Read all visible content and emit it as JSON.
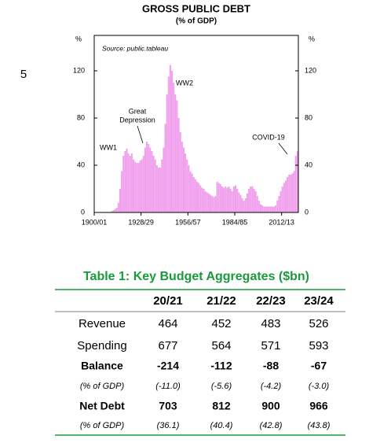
{
  "page_number": "5",
  "chart_data": {
    "type": "bar",
    "title": "GROSS PUBLIC DEBT",
    "subtitle": "(% of GDP)",
    "y_unit_left": "%",
    "y_unit_right": "%",
    "source": "Source: public.tableau",
    "annotations": {
      "ww1": "WW1",
      "great_depression": [
        "Great",
        "Depression"
      ],
      "ww2": "WW2",
      "covid": "COVID-19"
    },
    "color": "#f0a0ec",
    "xlim": [
      1900,
      2022
    ],
    "xticks": [
      {
        "value": 1900,
        "label": "1900/01"
      },
      {
        "value": 1928,
        "label": "1928/29"
      },
      {
        "value": 1956,
        "label": "1956/57"
      },
      {
        "value": 1984,
        "label": "1984/85"
      },
      {
        "value": 2012,
        "label": "2012/13"
      }
    ],
    "ylim": [
      0,
      150
    ],
    "yticks": [
      0,
      40,
      80,
      120
    ],
    "x": [
      1900,
      1901,
      1902,
      1903,
      1904,
      1905,
      1906,
      1907,
      1908,
      1909,
      1910,
      1911,
      1912,
      1913,
      1914,
      1915,
      1916,
      1917,
      1918,
      1919,
      1920,
      1921,
      1922,
      1923,
      1924,
      1925,
      1926,
      1927,
      1928,
      1929,
      1930,
      1931,
      1932,
      1933,
      1934,
      1935,
      1936,
      1937,
      1938,
      1939,
      1940,
      1941,
      1942,
      1943,
      1944,
      1945,
      1946,
      1947,
      1948,
      1949,
      1950,
      1951,
      1952,
      1953,
      1954,
      1955,
      1956,
      1957,
      1958,
      1959,
      1960,
      1961,
      1962,
      1963,
      1964,
      1965,
      1966,
      1967,
      1968,
      1969,
      1970,
      1971,
      1972,
      1973,
      1974,
      1975,
      1976,
      1977,
      1978,
      1979,
      1980,
      1981,
      1982,
      1983,
      1984,
      1985,
      1986,
      1987,
      1988,
      1989,
      1990,
      1991,
      1992,
      1993,
      1994,
      1995,
      1996,
      1997,
      1998,
      1999,
      2000,
      2001,
      2002,
      2003,
      2004,
      2005,
      2006,
      2007,
      2008,
      2009,
      2010,
      2011,
      2012,
      2013,
      2014,
      2015,
      2016,
      2017,
      2018,
      2019,
      2020,
      2021
    ],
    "values": [
      0,
      0,
      0,
      0,
      0,
      0,
      0,
      0,
      0,
      0,
      1,
      2,
      3,
      4,
      8,
      20,
      35,
      48,
      52,
      54,
      50,
      48,
      50,
      45,
      43,
      42,
      42,
      44,
      45,
      48,
      55,
      60,
      58,
      55,
      52,
      48,
      45,
      40,
      38,
      38,
      45,
      55,
      75,
      100,
      115,
      125,
      120,
      110,
      100,
      95,
      80,
      68,
      60,
      55,
      50,
      45,
      40,
      35,
      33,
      30,
      28,
      26,
      25,
      23,
      21,
      20,
      18,
      17,
      16,
      15,
      14,
      13,
      14,
      26,
      25,
      24,
      22,
      21,
      22,
      21,
      22,
      20,
      18,
      22,
      23,
      20,
      17,
      15,
      12,
      10,
      12,
      16,
      20,
      22,
      22,
      20,
      18,
      14,
      10,
      7,
      6,
      5,
      5,
      5,
      5,
      5,
      5,
      5,
      6,
      10,
      14,
      18,
      22,
      25,
      27,
      30,
      32,
      32,
      33,
      35,
      48,
      52
    ]
  },
  "table": {
    "title": "Table 1: Key Budget Aggregates ($bn)",
    "columns": [
      "20/21",
      "21/22",
      "22/23",
      "23/24"
    ],
    "rows": [
      [
        "Revenue",
        "464",
        "452",
        "483",
        "526"
      ],
      [
        "Spending",
        "677",
        "564",
        "571",
        "593"
      ],
      [
        "Balance",
        "-214",
        "-112",
        "-88",
        "-67"
      ],
      [
        "(% of GDP)",
        "(-11.0)",
        "(-5.6)",
        "(-4.2)",
        "(-3.0)"
      ],
      [
        "Net Debt",
        "703",
        "812",
        "900",
        "966"
      ],
      [
        "(% of GDP)",
        "(36.1)",
        "(40.4)",
        "(42.8)",
        "(43.8)"
      ]
    ]
  }
}
